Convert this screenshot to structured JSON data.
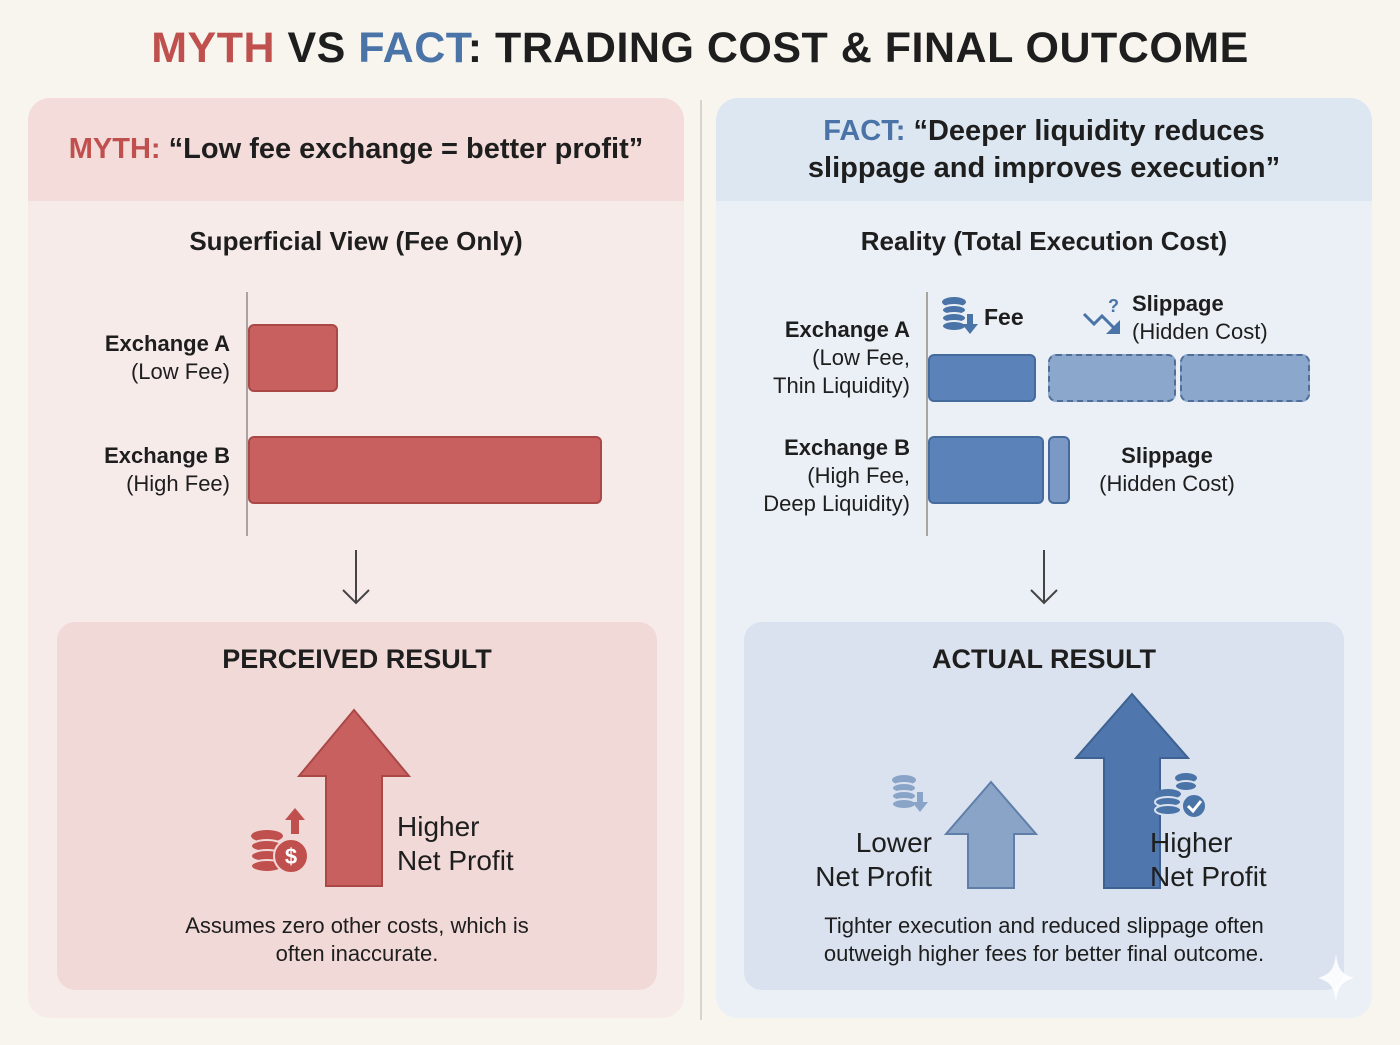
{
  "title": {
    "myth": "MYTH",
    "vs": " VS ",
    "fact": "FACT",
    "rest": ": TRADING COST & FINAL OUTCOME"
  },
  "myth_panel": {
    "header_prefix": "MYTH:",
    "header_text": "“Low fee exchange = better profit”",
    "subtitle": "Superficial View (Fee Only)",
    "rows": [
      {
        "name": "Exchange A",
        "detail": "(Low Fee)"
      },
      {
        "name": "Exchange B",
        "detail": "(High Fee)"
      }
    ],
    "result_title": "PERCEIVED RESULT",
    "result_label_1": "Higher",
    "result_label_2": "Net Profit",
    "note_1": "Assumes zero other costs, which is",
    "note_2": "often inaccurate."
  },
  "fact_panel": {
    "header_prefix": "FACT:",
    "header_line_1": "“Deeper liquidity reduces",
    "header_line_2": "slippage and improves execution”",
    "subtitle": "Reality (Total Execution Cost)",
    "legend_fee": "Fee",
    "legend_slippage": "Slippage",
    "legend_hidden": "(Hidden Cost)",
    "rows": [
      {
        "name": "Exchange A",
        "detail_1": "(Low Fee,",
        "detail_2": "Thin Liquidity)"
      },
      {
        "name": "Exchange B",
        "detail_1": "(High Fee,",
        "detail_2": "Deep Liquidity)"
      }
    ],
    "slippage_label": "Slippage",
    "slippage_hidden": "(Hidden Cost)",
    "result_title": "ACTUAL RESULT",
    "lower_1": "Lower",
    "lower_2": "Net Profit",
    "higher_1": "Higher",
    "higher_2": "Net Profit",
    "note_1": "Tighter execution and reduced slippage often",
    "note_2": "outweigh higher fees for better final outcome."
  },
  "colors": {
    "myth": "#c0504d",
    "fact": "#4a73a8",
    "red_bar": "#c8605f",
    "blue_bar": "#5b82b9"
  },
  "icons": [
    "coins-dollar-icon",
    "coins-down-icon",
    "trend-down-question-icon",
    "coins-check-icon",
    "down-arrow-icon",
    "up-arrow-icon"
  ]
}
